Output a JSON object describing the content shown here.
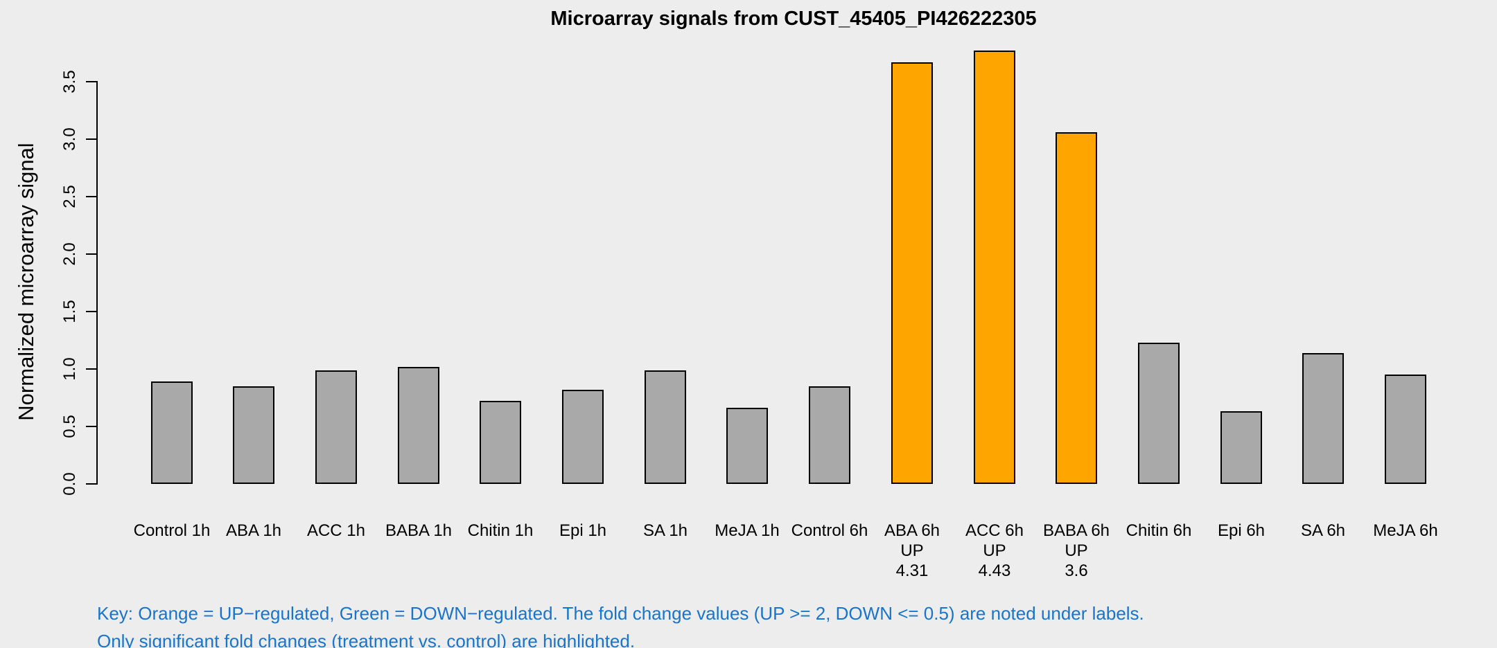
{
  "chart_data": {
    "type": "bar",
    "title": "Microarray signals from CUST_45405_PI426222305",
    "xlabel": "",
    "ylabel": "Normalized microarray signal",
    "ylim": [
      0,
      3.8
    ],
    "yticks": [
      "0.0",
      "0.5",
      "1.0",
      "1.5",
      "2.0",
      "2.5",
      "3.0",
      "3.5"
    ],
    "grid": false,
    "legend_position": "none",
    "categories": [
      "Control 1h",
      "ABA 1h",
      "ACC 1h",
      "BABA 1h",
      "Chitin 1h",
      "Epi 1h",
      "SA 1h",
      "MeJA 1h",
      "Control 6h",
      "ABA 6h",
      "ACC 6h",
      "BABA 6h",
      "Chitin 6h",
      "Epi 6h",
      "SA 6h",
      "MeJA 6h"
    ],
    "values": [
      0.89,
      0.85,
      0.99,
      1.02,
      0.72,
      0.82,
      0.99,
      0.66,
      0.85,
      3.67,
      3.77,
      3.06,
      1.23,
      0.63,
      1.14,
      0.95
    ],
    "annotations": [
      {
        "index": 9,
        "lines": [
          "UP",
          "4.31"
        ]
      },
      {
        "index": 10,
        "lines": [
          "UP",
          "4.43"
        ]
      },
      {
        "index": 11,
        "lines": [
          "UP",
          "3.6"
        ]
      }
    ]
  },
  "colors": {
    "background": "#EDEDED",
    "bar_default": "#A9A9A9",
    "bar_up": "#FFA500",
    "bar_down": "#008000",
    "bar_border": "#000000",
    "axis": "#000000",
    "key_text": "#1874CD"
  },
  "key": {
    "line1": "Key: Orange = UP−regulated, Green = DOWN−regulated. The fold change values (UP >= 2, DOWN <= 0.5) are noted under labels.",
    "line2": "Only significant fold changes (treatment vs. control) are highlighted."
  }
}
